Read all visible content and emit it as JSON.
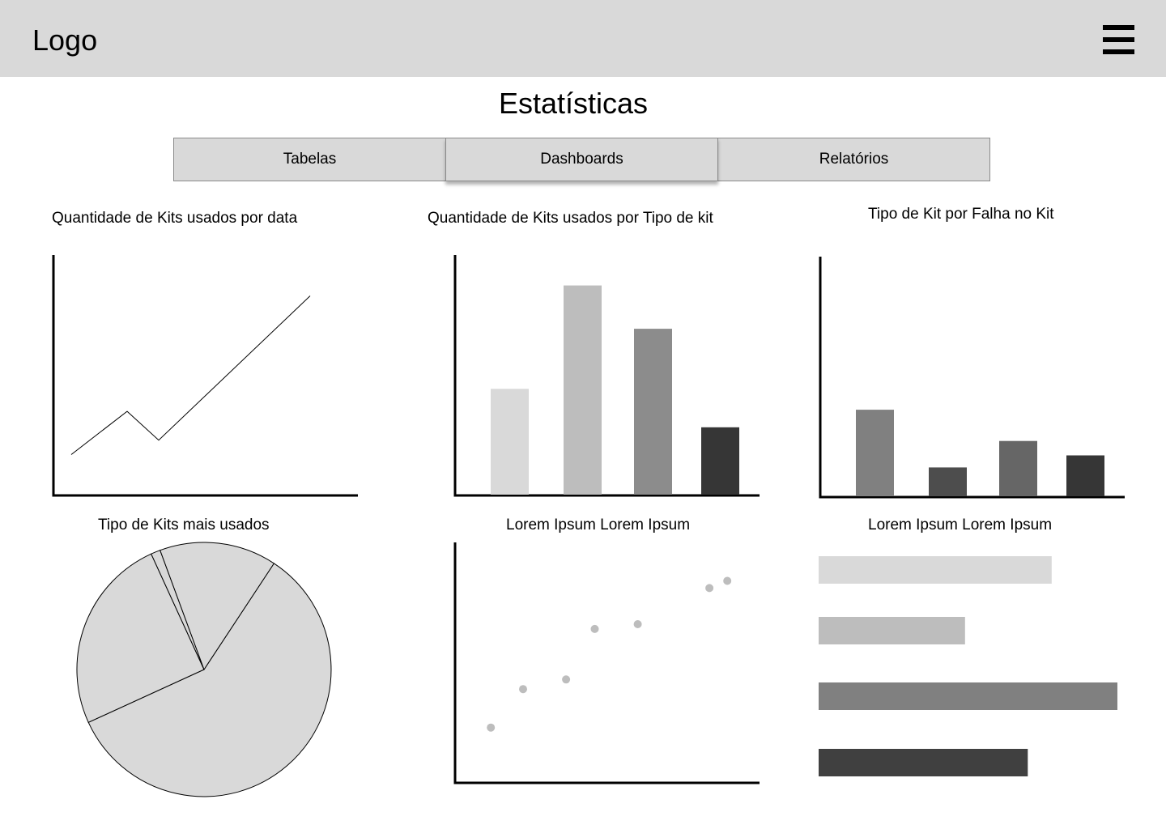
{
  "header": {
    "logo": "Logo",
    "menu_icon": "hamburger-menu-icon"
  },
  "page": {
    "title": "Estatísticas"
  },
  "tabs": [
    {
      "label": "Tabelas",
      "active": false
    },
    {
      "label": "Dashboards",
      "active": true
    },
    {
      "label": "Relatórios",
      "active": false
    }
  ],
  "colors": {
    "header_bg": "#d9d9d9",
    "tab_bg": "#d9d9d9",
    "pie_fill": "#d9d9d9",
    "scatter_point": "#bdbdbd"
  },
  "charts": {
    "line": {
      "title": "Quantidade de Kits usados por data"
    },
    "bar": {
      "title": "Quantidade de Kits usados por Tipo de kit"
    },
    "failure": {
      "title": "Tipo de Kit por Falha no Kit"
    },
    "pie": {
      "title": "Tipo de Kits mais usados"
    },
    "scatter": {
      "title": "Lorem Ipsum Lorem Ipsum"
    },
    "hbar": {
      "title": "Lorem Ipsum Lorem Ipsum"
    }
  },
  "chart_data": [
    {
      "type": "line",
      "title": "Quantidade de Kits usados por data",
      "x": [
        1,
        2,
        3,
        4
      ],
      "y": [
        17,
        35,
        23,
        83
      ],
      "ylim": [
        0,
        100
      ]
    },
    {
      "type": "bar",
      "title": "Quantidade de Kits usados por Tipo de kit",
      "values": [
        44,
        87,
        69,
        28
      ],
      "colors": [
        "#d9d9d9",
        "#bdbdbd",
        "#8c8c8c",
        "#363636"
      ],
      "ylim": [
        0,
        100
      ]
    },
    {
      "type": "bar",
      "title": "Tipo de Kit por Falha no Kit",
      "values": [
        36,
        12,
        23,
        17
      ],
      "colors": [
        "#808080",
        "#4d4d4d",
        "#666666",
        "#363636"
      ],
      "ylim": [
        0,
        100
      ]
    },
    {
      "type": "pie",
      "title": "Tipo de Kits mais usados",
      "values": [
        58.9,
        25.0,
        1.2,
        14.9
      ]
    },
    {
      "type": "scatter",
      "title": "Lorem Ipsum Lorem Ipsum",
      "x": [
        10,
        19,
        31,
        39,
        51,
        71,
        76
      ],
      "y": [
        23,
        39,
        43,
        64,
        66,
        81,
        84
      ],
      "xlim": [
        0,
        85
      ],
      "ylim": [
        0,
        100
      ]
    },
    {
      "type": "bar",
      "orientation": "horizontal",
      "title": "Lorem Ipsum Lorem Ipsum",
      "values": [
        78,
        49,
        100,
        70
      ],
      "colors": [
        "#d9d9d9",
        "#bdbdbd",
        "#808080",
        "#404040"
      ],
      "xlim": [
        0,
        100
      ]
    }
  ]
}
